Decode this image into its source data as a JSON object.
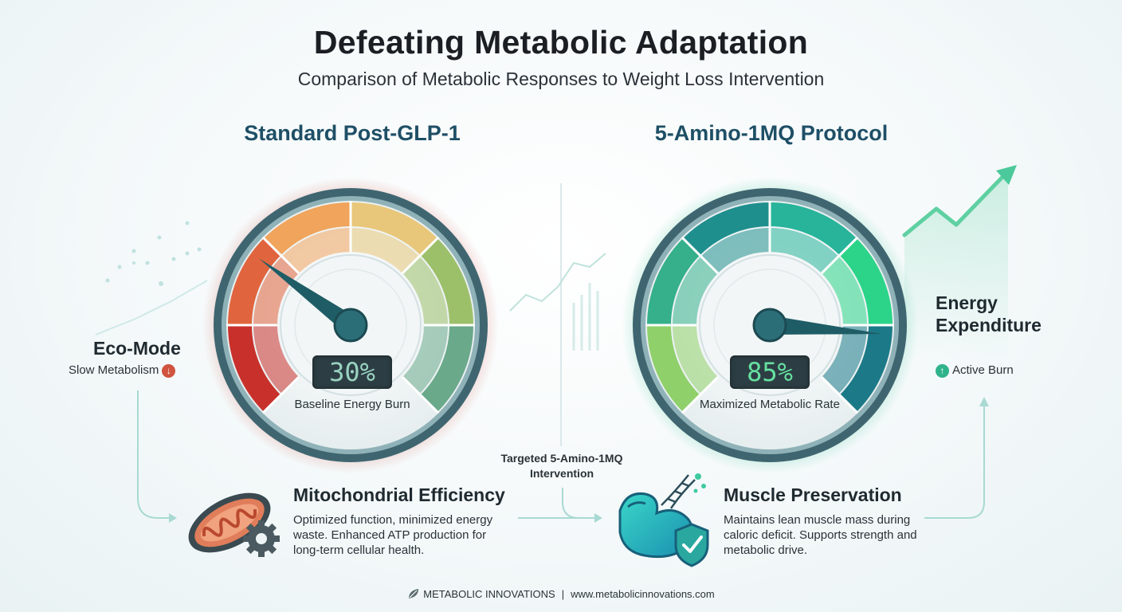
{
  "header": {
    "title": "Defeating Metabolic Adaptation",
    "subtitle": "Comparison of Metabolic Responses to Weight Loss Intervention"
  },
  "left_panel": {
    "title": "Standard Post-GLP-1",
    "gauge_value": 30,
    "gauge_readout": "30%",
    "gauge_caption": "Baseline Energy Burn",
    "side_label": "Eco-Mode",
    "side_sub": "Slow Metabolism",
    "side_icon": "arrow-down-icon",
    "accent": "#c9463b"
  },
  "right_panel": {
    "title": "5-Amino-1MQ Protocol",
    "gauge_value": 85,
    "gauge_readout": "85%",
    "gauge_caption": "Maximized Metabolic Rate",
    "side_label_line1": "Energy",
    "side_label_line2": "Expenditure",
    "side_sub": "Active Burn",
    "side_icon": "arrow-up-icon",
    "accent": "#1fbf8a"
  },
  "features": {
    "mitochondria": {
      "title": "Mitochondrial Efficiency",
      "text_line1": "Optimized function, minimized energy",
      "text_line2": "waste. Enhanced ATP production for",
      "text_line3": "long-term cellular health.",
      "icon": "mitochondria-gear-icon"
    },
    "muscle": {
      "title": "Muscle Preservation",
      "text_line1": "Maintains lean muscle mass during",
      "text_line2": "caloric deficit. Supports strength and",
      "text_line3": "metabolic drive.",
      "icon": "muscle-dna-shield-icon"
    },
    "intervention_line1": "Targeted 5-Amino-1MQ",
    "intervention_line2": "Intervention"
  },
  "footer": {
    "brand": "METABOLIC INNOVATIONS",
    "separator": "|",
    "url": "www.metabolicinnovations.com",
    "logo_icon": "leaf-logo-icon"
  }
}
